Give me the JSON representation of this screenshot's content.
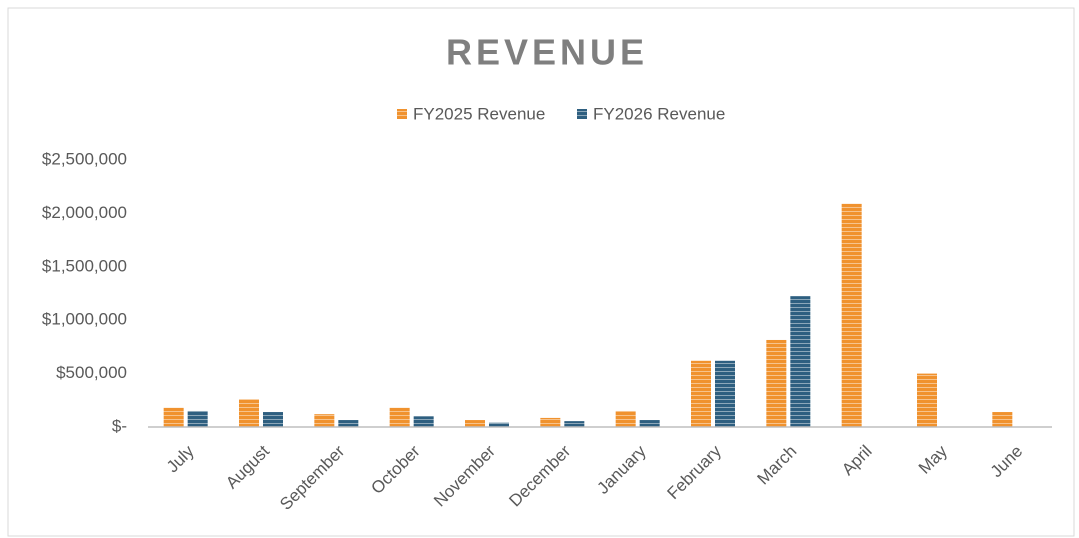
{
  "chart_data": {
    "type": "bar",
    "title": "REVENUE",
    "categories": [
      "July",
      "August",
      "September",
      "October",
      "November",
      "December",
      "January",
      "February",
      "March",
      "April",
      "May",
      "June"
    ],
    "series": [
      {
        "name": "FY2025 Revenue",
        "color": "#f0922e",
        "values": [
          180000,
          260000,
          120000,
          180000,
          65000,
          85000,
          150000,
          620000,
          815000,
          2090000,
          500000,
          140000
        ]
      },
      {
        "name": "FY2026 Revenue",
        "color": "#2e5f80",
        "values": [
          150000,
          140000,
          65000,
          100000,
          40000,
          55000,
          65000,
          620000,
          1225000,
          null,
          null,
          null
        ]
      }
    ],
    "ylim": [
      0,
      2500000
    ],
    "yticks": [
      {
        "value": 0,
        "label": "$-"
      },
      {
        "value": 500000,
        "label": "$500,000"
      },
      {
        "value": 1000000,
        "label": "$1,000,000"
      },
      {
        "value": 1500000,
        "label": "$1,500,000"
      },
      {
        "value": 2000000,
        "label": "$2,000,000"
      },
      {
        "value": 2500000,
        "label": "$2,500,000"
      }
    ],
    "legend": "top",
    "grid": false
  }
}
